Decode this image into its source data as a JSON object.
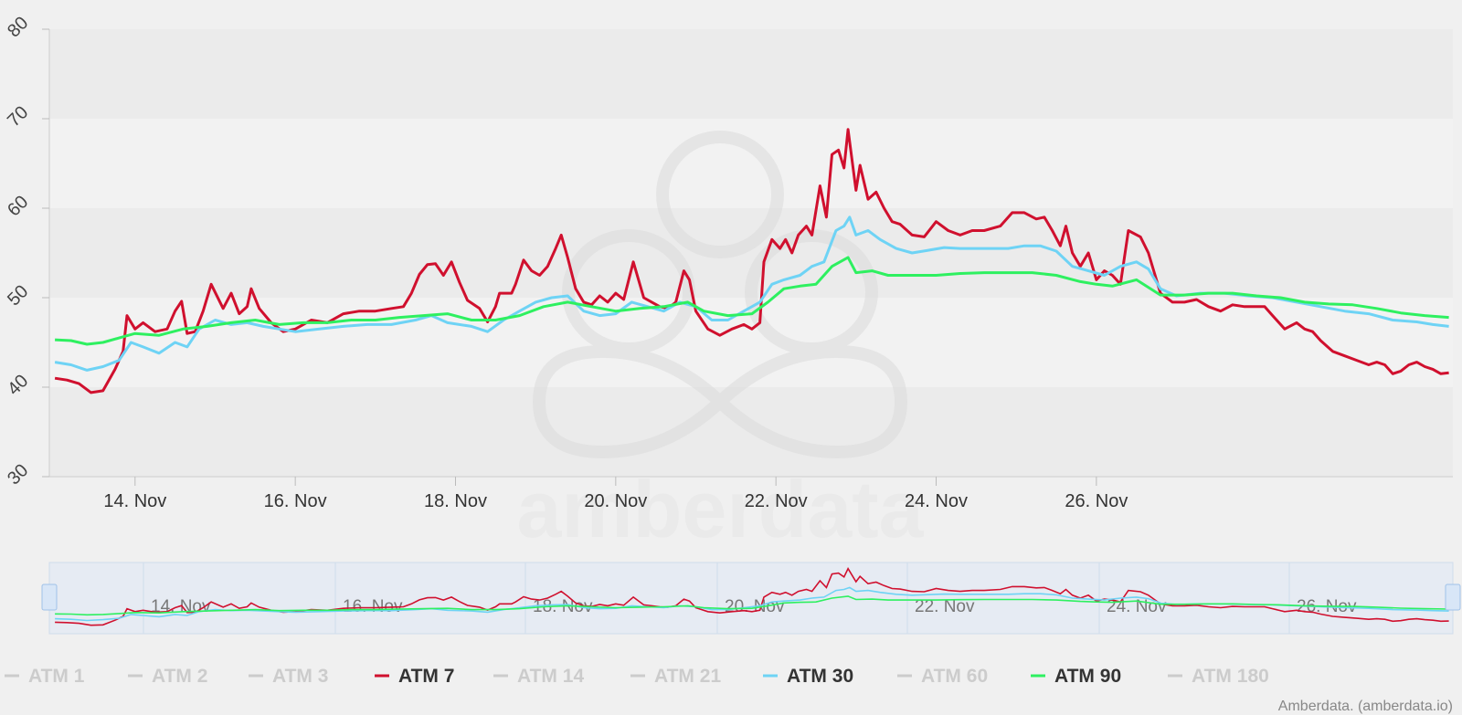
{
  "watermark": {
    "text": "amberdata"
  },
  "credits": {
    "text": "Amberdata. (amberdata.io)"
  },
  "colors": {
    "atm7": "#d0102e",
    "atm30": "#6ed3f5",
    "atm90": "#2ef060",
    "hidden": "#cccccc"
  },
  "chart_data": {
    "type": "line",
    "x_unit": "days",
    "x_ticks": [
      "14. Nov",
      "16. Nov",
      "18. Nov",
      "20. Nov",
      "22. Nov",
      "24. Nov",
      "26. Nov"
    ],
    "y_ticks": [
      "30",
      "40",
      "50",
      "60",
      "70",
      "80"
    ],
    "ylim": [
      30,
      80
    ],
    "grid": "alternating horizontal bands",
    "legend_position": "bottom",
    "legend": [
      {
        "name": "ATM 1",
        "visible": false
      },
      {
        "name": "ATM 2",
        "visible": false
      },
      {
        "name": "ATM 3",
        "visible": false
      },
      {
        "name": "ATM 7",
        "visible": true
      },
      {
        "name": "ATM 14",
        "visible": false
      },
      {
        "name": "ATM 21",
        "visible": false
      },
      {
        "name": "ATM 30",
        "visible": true
      },
      {
        "name": "ATM 60",
        "visible": false
      },
      {
        "name": "ATM 90",
        "visible": true
      },
      {
        "name": "ATM 180",
        "visible": false
      }
    ],
    "series": [
      {
        "name": "ATM 7",
        "color": "#d0102e",
        "points": [
          [
            13.0,
            41
          ],
          [
            13.15,
            40.8
          ],
          [
            13.3,
            40.4
          ],
          [
            13.45,
            39.4
          ],
          [
            13.6,
            39.6
          ],
          [
            13.75,
            42
          ],
          [
            13.85,
            44
          ],
          [
            13.9,
            48
          ],
          [
            14.0,
            46.5
          ],
          [
            14.1,
            47.2
          ],
          [
            14.25,
            46.2
          ],
          [
            14.4,
            46.5
          ],
          [
            14.5,
            48.5
          ],
          [
            14.58,
            49.6
          ],
          [
            14.65,
            46
          ],
          [
            14.75,
            46.2
          ],
          [
            14.85,
            48.5
          ],
          [
            14.95,
            51.5
          ],
          [
            15.1,
            48.8
          ],
          [
            15.2,
            50.5
          ],
          [
            15.3,
            48.2
          ],
          [
            15.4,
            49
          ],
          [
            15.45,
            51
          ],
          [
            15.55,
            48.8
          ],
          [
            15.7,
            47.2
          ],
          [
            15.85,
            46.2
          ],
          [
            16.0,
            46.5
          ],
          [
            16.2,
            47.5
          ],
          [
            16.4,
            47.2
          ],
          [
            16.6,
            48.2
          ],
          [
            16.8,
            48.5
          ],
          [
            17.0,
            48.5
          ],
          [
            17.2,
            48.8
          ],
          [
            17.35,
            49
          ],
          [
            17.45,
            50.5
          ],
          [
            17.55,
            52.6
          ],
          [
            17.65,
            53.7
          ],
          [
            17.75,
            53.8
          ],
          [
            17.85,
            52.5
          ],
          [
            17.95,
            54
          ],
          [
            18.05,
            51.7
          ],
          [
            18.15,
            49.7
          ],
          [
            18.3,
            48.8
          ],
          [
            18.4,
            47.3
          ],
          [
            18.5,
            49
          ],
          [
            18.55,
            50.5
          ],
          [
            18.7,
            50.5
          ],
          [
            18.75,
            51.5
          ],
          [
            18.85,
            54.2
          ],
          [
            18.95,
            53
          ],
          [
            19.05,
            52.5
          ],
          [
            19.15,
            53.5
          ],
          [
            19.25,
            55.5
          ],
          [
            19.32,
            57
          ],
          [
            19.4,
            54.5
          ],
          [
            19.5,
            51
          ],
          [
            19.6,
            49.5
          ],
          [
            19.7,
            49.2
          ],
          [
            19.8,
            50.2
          ],
          [
            19.9,
            49.5
          ],
          [
            20.0,
            50.5
          ],
          [
            20.1,
            49.8
          ],
          [
            20.22,
            54
          ],
          [
            20.35,
            50
          ],
          [
            20.45,
            49.5
          ],
          [
            20.55,
            49
          ],
          [
            20.65,
            48.8
          ],
          [
            20.75,
            49.5
          ],
          [
            20.85,
            53
          ],
          [
            20.92,
            52
          ],
          [
            21.0,
            48.5
          ],
          [
            21.15,
            46.5
          ],
          [
            21.3,
            45.8
          ],
          [
            21.45,
            46.5
          ],
          [
            21.6,
            47
          ],
          [
            21.7,
            46.5
          ],
          [
            21.8,
            47.2
          ],
          [
            21.85,
            54
          ],
          [
            21.95,
            56.5
          ],
          [
            22.05,
            55.5
          ],
          [
            22.12,
            56.5
          ],
          [
            22.2,
            55
          ],
          [
            22.28,
            57
          ],
          [
            22.38,
            58
          ],
          [
            22.45,
            57
          ],
          [
            22.55,
            62.5
          ],
          [
            22.63,
            59
          ],
          [
            22.7,
            66
          ],
          [
            22.78,
            66.5
          ],
          [
            22.85,
            64.5
          ],
          [
            22.9,
            68.8
          ],
          [
            23.0,
            62
          ],
          [
            23.05,
            64.8
          ],
          [
            23.15,
            61
          ],
          [
            23.25,
            61.8
          ],
          [
            23.35,
            60
          ],
          [
            23.45,
            58.5
          ],
          [
            23.55,
            58.2
          ],
          [
            23.7,
            57
          ],
          [
            23.85,
            56.8
          ],
          [
            24.0,
            58.5
          ],
          [
            24.15,
            57.5
          ],
          [
            24.3,
            57
          ],
          [
            24.45,
            57.5
          ],
          [
            24.6,
            57.5
          ],
          [
            24.8,
            58
          ],
          [
            24.95,
            59.5
          ],
          [
            25.1,
            59.5
          ],
          [
            25.25,
            58.8
          ],
          [
            25.35,
            59
          ],
          [
            25.45,
            57.5
          ],
          [
            25.55,
            55.8
          ],
          [
            25.62,
            58
          ],
          [
            25.7,
            55
          ],
          [
            25.8,
            53.5
          ],
          [
            25.9,
            55
          ],
          [
            26.0,
            52
          ],
          [
            26.1,
            53
          ],
          [
            26.2,
            52.5
          ],
          [
            26.3,
            51.5
          ],
          [
            26.4,
            57.5
          ],
          [
            26.55,
            56.8
          ],
          [
            26.65,
            55
          ],
          [
            26.8,
            50.5
          ],
          [
            26.95,
            49.5
          ],
          [
            27.1,
            49.5
          ],
          [
            27.25,
            49.8
          ],
          [
            27.4,
            49
          ],
          [
            27.55,
            48.5
          ],
          [
            27.7,
            49.2
          ],
          [
            27.85,
            49
          ],
          [
            28.0,
            49
          ],
          [
            28.1,
            49
          ],
          [
            28.2,
            48
          ],
          [
            28.35,
            46.5
          ],
          [
            28.5,
            47.2
          ],
          [
            28.6,
            46.5
          ],
          [
            28.7,
            46.2
          ],
          [
            28.8,
            45.2
          ],
          [
            28.95,
            44
          ],
          [
            29.1,
            43.5
          ],
          [
            29.25,
            43
          ],
          [
            29.4,
            42.5
          ],
          [
            29.5,
            42.8
          ],
          [
            29.6,
            42.5
          ],
          [
            29.7,
            41.5
          ],
          [
            29.8,
            41.8
          ],
          [
            29.9,
            42.5
          ],
          [
            30.0,
            42.8
          ],
          [
            30.1,
            42.3
          ],
          [
            30.2,
            42
          ],
          [
            30.3,
            41.5
          ],
          [
            30.4,
            41.6
          ]
        ]
      },
      {
        "name": "ATM 30",
        "color": "#6ed3f5",
        "points": [
          [
            13.0,
            42.8
          ],
          [
            13.2,
            42.5
          ],
          [
            13.4,
            41.9
          ],
          [
            13.6,
            42.3
          ],
          [
            13.8,
            43
          ],
          [
            13.95,
            45
          ],
          [
            14.1,
            44.5
          ],
          [
            14.3,
            43.8
          ],
          [
            14.5,
            45
          ],
          [
            14.65,
            44.5
          ],
          [
            14.8,
            46.5
          ],
          [
            15.0,
            47.5
          ],
          [
            15.2,
            47
          ],
          [
            15.4,
            47.2
          ],
          [
            15.6,
            46.8
          ],
          [
            15.8,
            46.5
          ],
          [
            16.0,
            46.2
          ],
          [
            16.3,
            46.5
          ],
          [
            16.6,
            46.8
          ],
          [
            16.9,
            47
          ],
          [
            17.2,
            47
          ],
          [
            17.5,
            47.5
          ],
          [
            17.7,
            48
          ],
          [
            17.9,
            47.2
          ],
          [
            18.2,
            46.8
          ],
          [
            18.4,
            46.2
          ],
          [
            18.6,
            47.5
          ],
          [
            18.8,
            48.5
          ],
          [
            19.0,
            49.5
          ],
          [
            19.2,
            50
          ],
          [
            19.4,
            50.2
          ],
          [
            19.6,
            48.5
          ],
          [
            19.8,
            48
          ],
          [
            20.0,
            48.2
          ],
          [
            20.2,
            49.5
          ],
          [
            20.4,
            49
          ],
          [
            20.6,
            48.5
          ],
          [
            20.8,
            49.5
          ],
          [
            21.0,
            49
          ],
          [
            21.2,
            47.5
          ],
          [
            21.4,
            47.5
          ],
          [
            21.6,
            48.5
          ],
          [
            21.8,
            49.5
          ],
          [
            21.95,
            51.5
          ],
          [
            22.1,
            52
          ],
          [
            22.3,
            52.5
          ],
          [
            22.45,
            53.5
          ],
          [
            22.6,
            54
          ],
          [
            22.75,
            57.5
          ],
          [
            22.85,
            58
          ],
          [
            22.92,
            59
          ],
          [
            23.0,
            57
          ],
          [
            23.15,
            57.5
          ],
          [
            23.3,
            56.5
          ],
          [
            23.5,
            55.5
          ],
          [
            23.7,
            55
          ],
          [
            23.9,
            55.3
          ],
          [
            24.1,
            55.6
          ],
          [
            24.3,
            55.5
          ],
          [
            24.6,
            55.5
          ],
          [
            24.9,
            55.5
          ],
          [
            25.1,
            55.8
          ],
          [
            25.3,
            55.8
          ],
          [
            25.5,
            55.2
          ],
          [
            25.7,
            53.5
          ],
          [
            25.9,
            53
          ],
          [
            26.1,
            52.5
          ],
          [
            26.3,
            53.5
          ],
          [
            26.5,
            54
          ],
          [
            26.65,
            53.2
          ],
          [
            26.8,
            51
          ],
          [
            27.0,
            50.2
          ],
          [
            27.3,
            50.5
          ],
          [
            27.6,
            50.5
          ],
          [
            27.9,
            50.2
          ],
          [
            28.2,
            50
          ],
          [
            28.5,
            49.5
          ],
          [
            28.8,
            49
          ],
          [
            29.1,
            48.5
          ],
          [
            29.4,
            48.2
          ],
          [
            29.7,
            47.5
          ],
          [
            30.0,
            47.3
          ],
          [
            30.2,
            47
          ],
          [
            30.4,
            46.8
          ]
        ]
      },
      {
        "name": "ATM 90",
        "color": "#2ef060",
        "points": [
          [
            13.0,
            45.3
          ],
          [
            13.2,
            45.2
          ],
          [
            13.4,
            44.8
          ],
          [
            13.6,
            45
          ],
          [
            13.8,
            45.5
          ],
          [
            14.0,
            46
          ],
          [
            14.3,
            45.8
          ],
          [
            14.6,
            46.5
          ],
          [
            14.9,
            46.8
          ],
          [
            15.2,
            47.2
          ],
          [
            15.5,
            47.5
          ],
          [
            15.8,
            47
          ],
          [
            16.1,
            47.2
          ],
          [
            16.4,
            47.2
          ],
          [
            16.7,
            47.5
          ],
          [
            17.0,
            47.5
          ],
          [
            17.3,
            47.8
          ],
          [
            17.6,
            48
          ],
          [
            17.9,
            48.2
          ],
          [
            18.2,
            47.5
          ],
          [
            18.5,
            47.5
          ],
          [
            18.8,
            48
          ],
          [
            19.1,
            49
          ],
          [
            19.4,
            49.5
          ],
          [
            19.7,
            49
          ],
          [
            20.0,
            48.5
          ],
          [
            20.3,
            48.8
          ],
          [
            20.6,
            49
          ],
          [
            20.9,
            49.5
          ],
          [
            21.1,
            48.5
          ],
          [
            21.4,
            48
          ],
          [
            21.7,
            48.2
          ],
          [
            21.9,
            49.5
          ],
          [
            22.1,
            51
          ],
          [
            22.3,
            51.3
          ],
          [
            22.5,
            51.5
          ],
          [
            22.7,
            53.5
          ],
          [
            22.9,
            54.5
          ],
          [
            23.0,
            52.8
          ],
          [
            23.2,
            53
          ],
          [
            23.4,
            52.5
          ],
          [
            23.7,
            52.5
          ],
          [
            24.0,
            52.5
          ],
          [
            24.3,
            52.7
          ],
          [
            24.6,
            52.8
          ],
          [
            24.9,
            52.8
          ],
          [
            25.2,
            52.8
          ],
          [
            25.5,
            52.5
          ],
          [
            25.8,
            51.8
          ],
          [
            26.0,
            51.5
          ],
          [
            26.2,
            51.3
          ],
          [
            26.5,
            52
          ],
          [
            26.8,
            50.3
          ],
          [
            27.1,
            50.3
          ],
          [
            27.4,
            50.5
          ],
          [
            27.7,
            50.5
          ],
          [
            28.0,
            50.2
          ],
          [
            28.3,
            50
          ],
          [
            28.6,
            49.5
          ],
          [
            28.9,
            49.3
          ],
          [
            29.2,
            49.2
          ],
          [
            29.5,
            48.8
          ],
          [
            29.8,
            48.3
          ],
          [
            30.1,
            48
          ],
          [
            30.4,
            47.8
          ]
        ]
      }
    ]
  }
}
